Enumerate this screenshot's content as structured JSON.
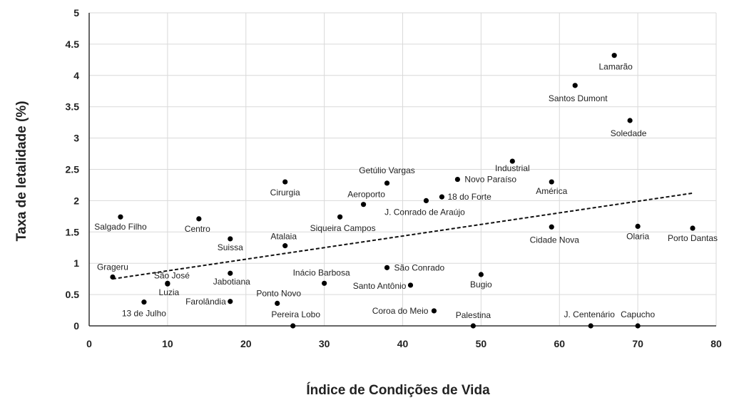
{
  "chart_data": {
    "type": "scatter",
    "xlabel": "Índice de Condições de Vida",
    "ylabel": "Taxa de letalidade (%)",
    "xlim": [
      0,
      80
    ],
    "ylim": [
      0,
      5
    ],
    "xticks": [
      "0",
      "10",
      "20",
      "30",
      "40",
      "50",
      "60",
      "70",
      "80"
    ],
    "yticks": [
      "0",
      "0.5",
      "1",
      "1.5",
      "2",
      "2.5",
      "3",
      "3.5",
      "4",
      "4.5",
      "5"
    ],
    "grid": true,
    "trendline": {
      "style": "dashed",
      "x": [
        3,
        77
      ],
      "y": [
        0.75,
        2.12
      ]
    },
    "points": [
      {
        "name": "Grageru",
        "x": 3,
        "y": 0.78
      },
      {
        "name": "Salgado Filho",
        "x": 4,
        "y": 1.74
      },
      {
        "name": "13 de Julho",
        "x": 7,
        "y": 0.38
      },
      {
        "name": "São José",
        "x": 10,
        "y": 0.68
      },
      {
        "name": "Luzia",
        "x": 10,
        "y": 0.67
      },
      {
        "name": "Centro",
        "x": 14,
        "y": 1.71
      },
      {
        "name": "Suissa",
        "x": 18,
        "y": 1.39
      },
      {
        "name": "Jabotiana",
        "x": 18,
        "y": 0.84
      },
      {
        "name": "Farolândia",
        "x": 18,
        "y": 0.39
      },
      {
        "name": "Cirurgia",
        "x": 25,
        "y": 2.3
      },
      {
        "name": "Atalaia",
        "x": 25,
        "y": 1.28
      },
      {
        "name": "Ponto Novo",
        "x": 24,
        "y": 0.36
      },
      {
        "name": "Pereira Lobo",
        "x": 26,
        "y": 0.0
      },
      {
        "name": "Inácio Barbosa",
        "x": 30,
        "y": 0.68
      },
      {
        "name": "Siqueira Campos",
        "x": 32,
        "y": 1.74
      },
      {
        "name": "Aeroporto",
        "x": 35,
        "y": 1.94
      },
      {
        "name": "Getúlio Vargas",
        "x": 38,
        "y": 2.28
      },
      {
        "name": "São Conrado",
        "x": 38,
        "y": 0.93
      },
      {
        "name": "Santo Antônio",
        "x": 41,
        "y": 0.65
      },
      {
        "name": "Coroa do Meio",
        "x": 44,
        "y": 0.24
      },
      {
        "name": "J. Conrado de Araújo",
        "x": 43,
        "y": 2.0
      },
      {
        "name": "18 do Forte",
        "x": 45,
        "y": 2.06
      },
      {
        "name": "Novo Paraíso",
        "x": 47,
        "y": 2.34
      },
      {
        "name": "Palestina",
        "x": 49,
        "y": 0.0
      },
      {
        "name": "Bugio",
        "x": 50,
        "y": 0.82
      },
      {
        "name": "Industrial",
        "x": 54,
        "y": 2.63
      },
      {
        "name": "América",
        "x": 59,
        "y": 2.3
      },
      {
        "name": "Cidade Nova",
        "x": 59,
        "y": 1.58
      },
      {
        "name": "Santos Dumont",
        "x": 62,
        "y": 3.84
      },
      {
        "name": "J. Centenário",
        "x": 64,
        "y": 0.0
      },
      {
        "name": "Lamarão",
        "x": 67,
        "y": 4.32
      },
      {
        "name": "Soledade",
        "x": 69,
        "y": 3.28
      },
      {
        "name": "Olaria",
        "x": 70,
        "y": 1.59
      },
      {
        "name": "Capucho",
        "x": 70,
        "y": 0.0
      },
      {
        "name": "Porto Dantas",
        "x": 77,
        "y": 1.56
      }
    ]
  }
}
